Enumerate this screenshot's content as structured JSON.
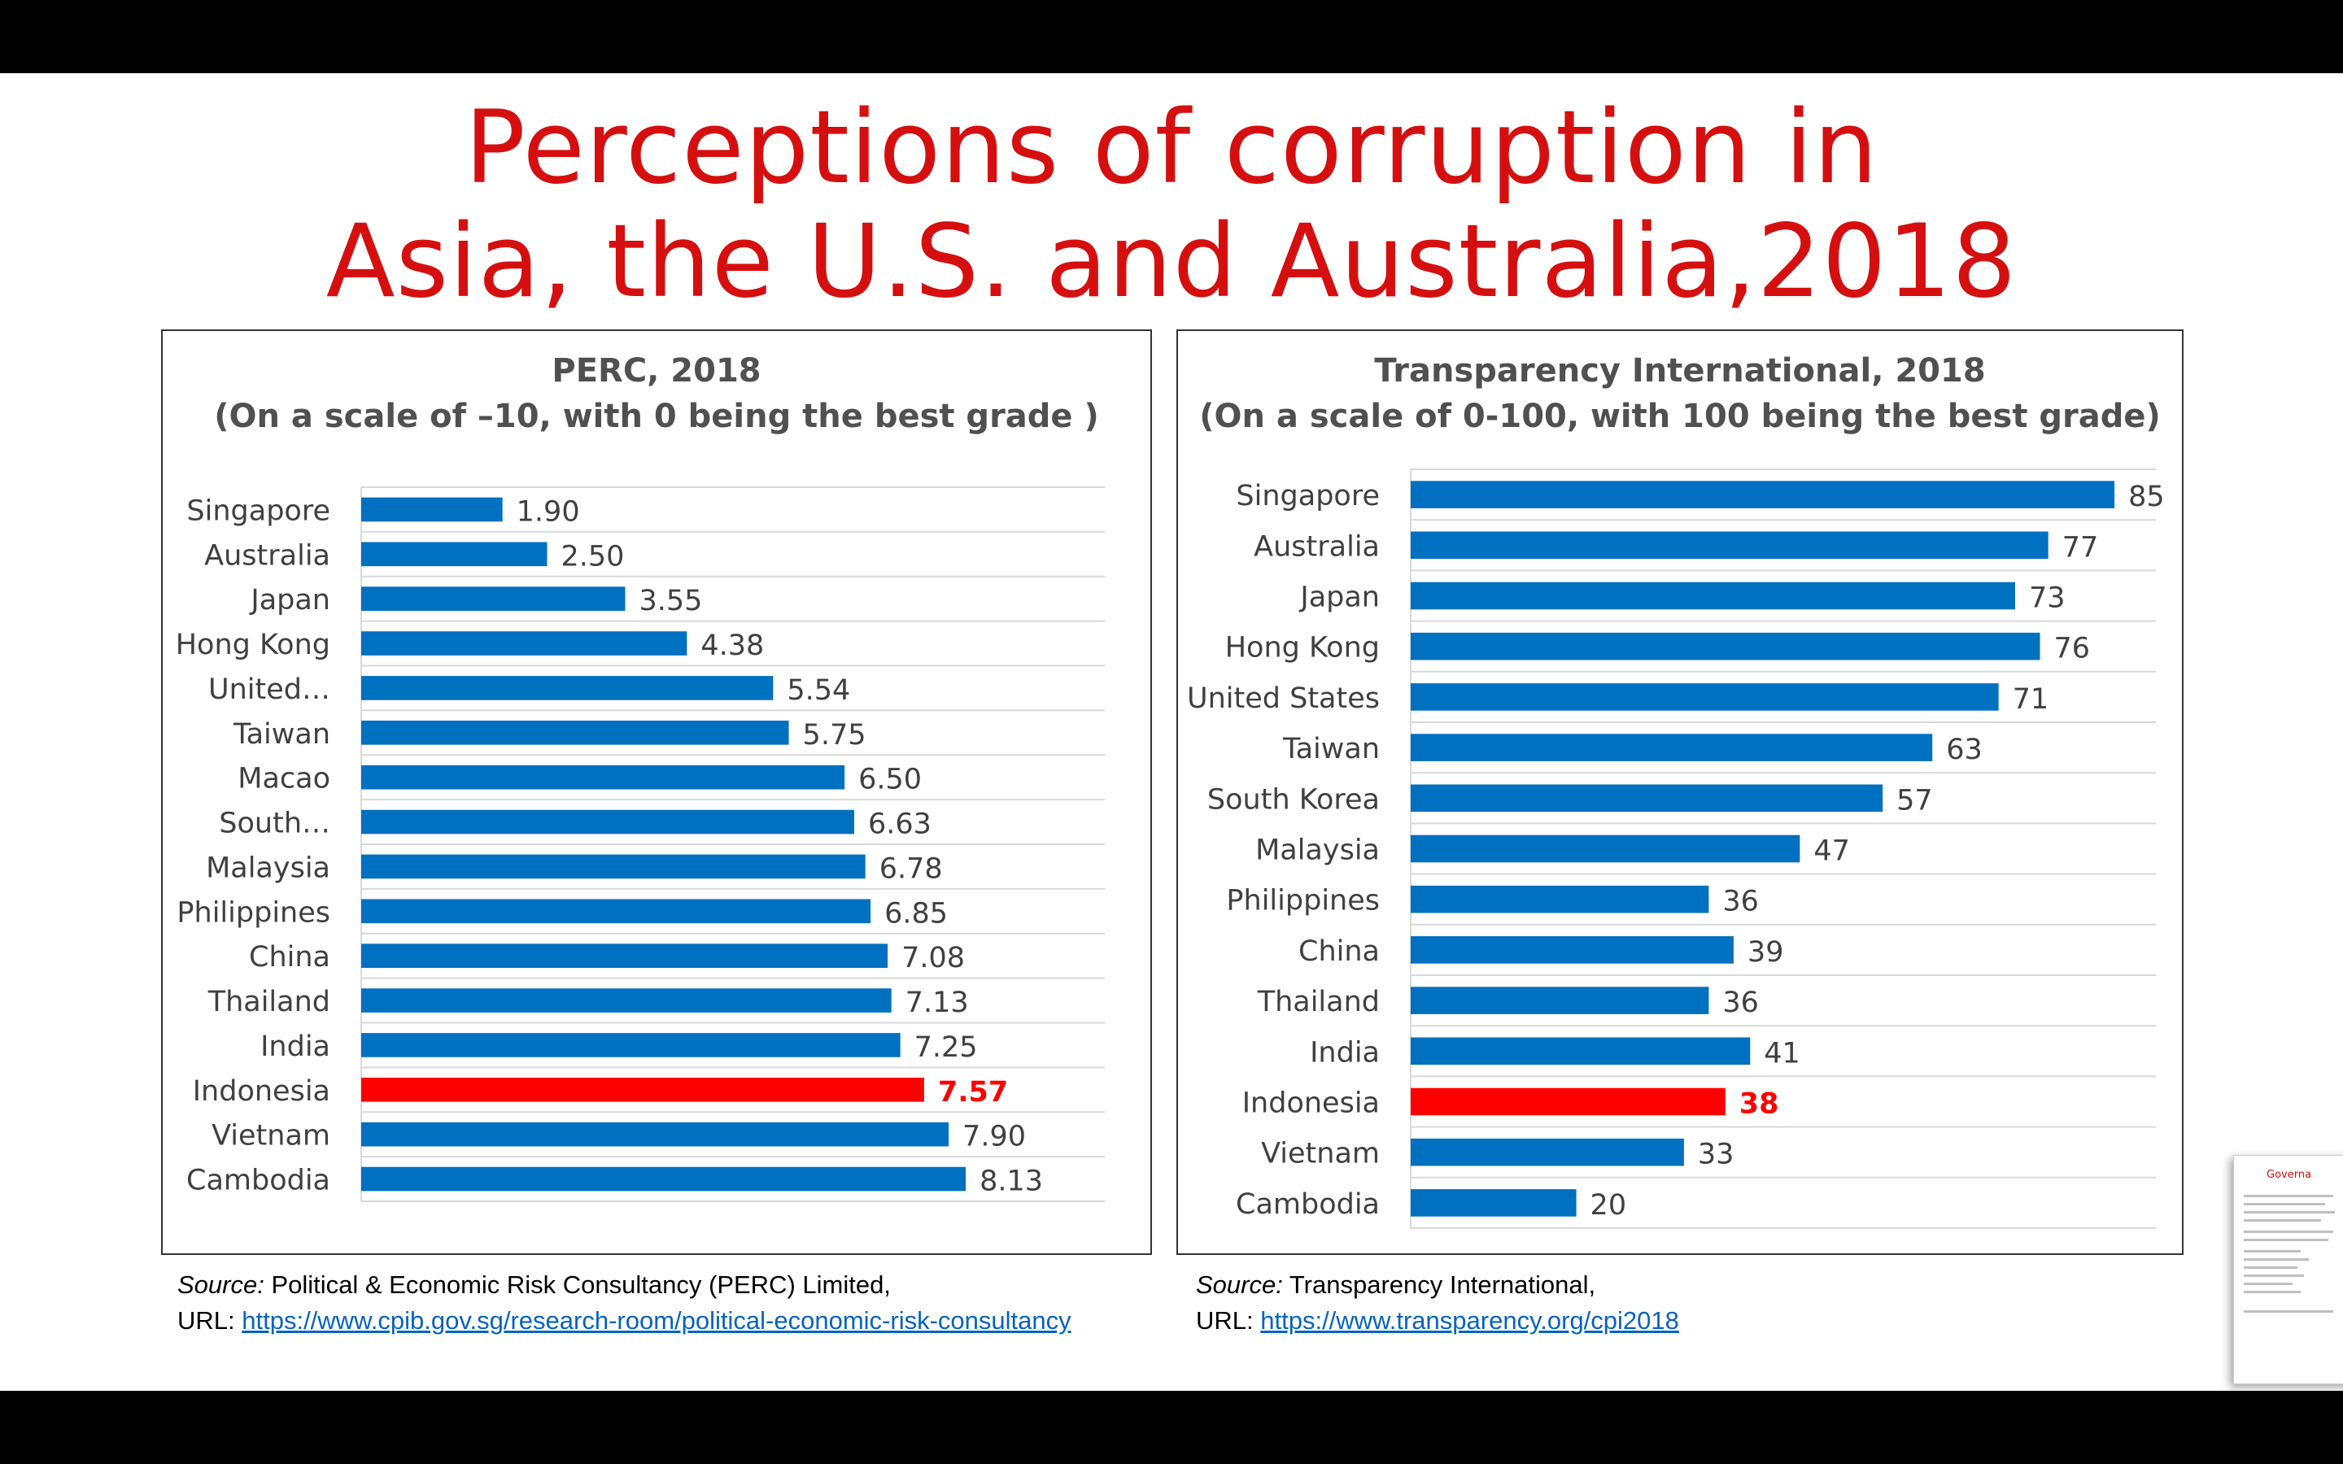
{
  "title": {
    "line1": "Perceptions of corruption in",
    "line2": "Asia, the U.S. and Australia,2018"
  },
  "colors": {
    "title": "#d50f0f",
    "bar": "#0070c0",
    "highlight": "#ff0000",
    "label": "#404040"
  },
  "chart_data": [
    {
      "type": "bar",
      "orientation": "horizontal",
      "title": "PERC, 2018",
      "subtitle": "(On a scale of –10, with 0 being the best grade )",
      "categories": [
        "Singapore",
        "Australia",
        "Japan",
        "Hong Kong",
        "United…",
        "Taiwan",
        "Macao",
        "South…",
        "Malaysia",
        "Philippines",
        "China",
        "Thailand",
        "India",
        "Indonesia",
        "Vietnam",
        "Cambodia"
      ],
      "values": [
        1.9,
        2.5,
        3.55,
        4.38,
        5.54,
        5.75,
        6.5,
        6.63,
        6.78,
        6.85,
        7.08,
        7.13,
        7.25,
        7.57,
        7.9,
        8.13
      ],
      "value_labels": [
        "1.90",
        "2.50",
        "3.55",
        "4.38",
        "5.54",
        "5.75",
        "6.50",
        "6.63",
        "6.78",
        "6.85",
        "7.08",
        "7.13",
        "7.25",
        "7.57",
        "7.90",
        "8.13"
      ],
      "highlight": "Indonesia",
      "xlim": [
        0,
        10
      ],
      "grid": true
    },
    {
      "type": "bar",
      "orientation": "horizontal",
      "title": "Transparency International, 2018",
      "subtitle": "(On a scale of 0-100, with 100 being the best grade)",
      "categories": [
        "Singapore",
        "Australia",
        "Japan",
        "Hong Kong",
        "United States",
        "Taiwan",
        "South Korea",
        "Malaysia",
        "Philippines",
        "China",
        "Thailand",
        "India",
        "Indonesia",
        "Vietnam",
        "Cambodia"
      ],
      "values": [
        85,
        77,
        73,
        76,
        71,
        63,
        57,
        47,
        36,
        39,
        36,
        41,
        38,
        33,
        20
      ],
      "value_labels": [
        "85",
        "77",
        "73",
        "76",
        "71",
        "63",
        "57",
        "47",
        "36",
        "39",
        "36",
        "41",
        "38",
        "33",
        "20"
      ],
      "highlight": "Indonesia",
      "xlim": [
        0,
        90
      ],
      "grid": true
    }
  ],
  "sources": {
    "left": {
      "label": "Source:",
      "text": " Political & Economic Risk Consultancy (PERC) Limited,",
      "url_label": "URL: ",
      "url": "https://www.cpib.gov.sg/research-room/political-economic-risk-consultancy"
    },
    "right": {
      "label": "Source:",
      "text": " Transparency International,",
      "url_label": "URL: ",
      "url": "https://www.transparency.org/cpi2018"
    }
  },
  "thumbnail": {
    "title": "Governa"
  }
}
